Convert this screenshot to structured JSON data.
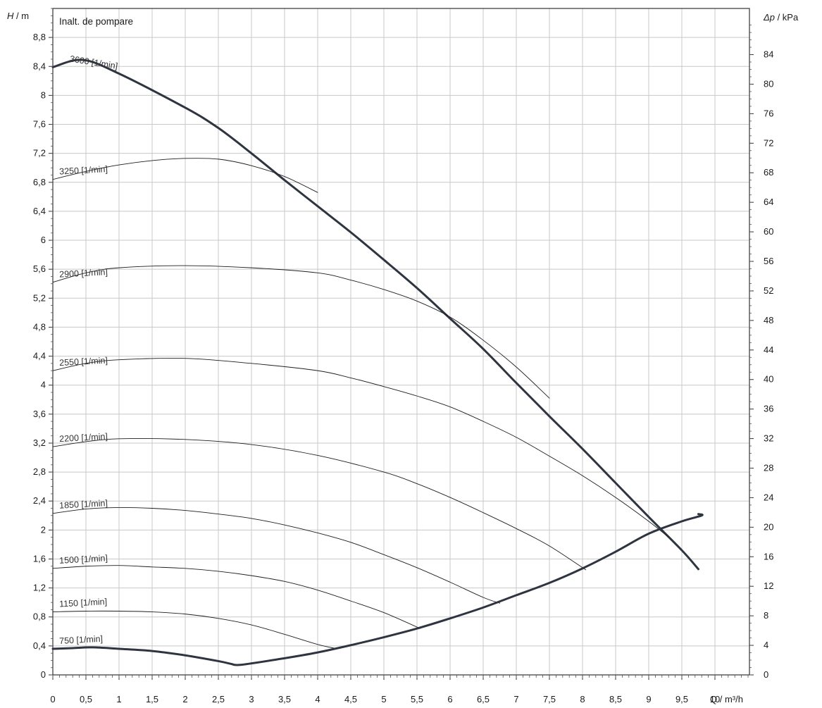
{
  "chart_data": {
    "type": "line",
    "title": "Inalt. de pompare",
    "y_axis_left": {
      "label_italic": "H",
      "label_rest": " / m",
      "range": [
        0,
        9.2
      ],
      "ticks": [
        0,
        0.4,
        0.8,
        1.2,
        1.6,
        2,
        2.4,
        2.8,
        3.2,
        3.6,
        4,
        4.4,
        4.8,
        5.2,
        5.6,
        6,
        6.4,
        6.8,
        7.2,
        7.6,
        8,
        8.4,
        8.8
      ],
      "tick_labels": [
        "0",
        "0,4",
        "0,8",
        "1,2",
        "1,6",
        "2",
        "2,4",
        "2,8",
        "3,2",
        "3,6",
        "4",
        "4,4",
        "4,8",
        "5,2",
        "5,6",
        "6",
        "6,4",
        "6,8",
        "7,2",
        "7,6",
        "8",
        "8,4",
        "8,8"
      ]
    },
    "y_axis_right": {
      "label_symbol": "Δp",
      "label_rest": " / kPa",
      "ticks": [
        0,
        4,
        8,
        12,
        16,
        20,
        24,
        28,
        32,
        36,
        40,
        44,
        48,
        52,
        56,
        60,
        64,
        68,
        72,
        76,
        80,
        84
      ],
      "tick_labels": [
        "0",
        "4",
        "8",
        "12",
        "16",
        "20",
        "24",
        "28",
        "32",
        "36",
        "40",
        "44",
        "48",
        "52",
        "56",
        "60",
        "64",
        "68",
        "72",
        "76",
        "80",
        "84"
      ],
      "kpa_per_m": 9.81
    },
    "x_axis": {
      "label": "Q / m³/h",
      "range": [
        0,
        10.5
      ],
      "ticks": [
        0,
        0.5,
        1,
        1.5,
        2,
        2.5,
        3,
        3.5,
        4,
        4.5,
        5,
        5.5,
        6,
        6.5,
        7,
        7.5,
        8,
        8.5,
        9,
        9.5,
        10
      ],
      "tick_labels": [
        "0",
        "0,5",
        "1",
        "1,5",
        "2",
        "2,5",
        "3",
        "3,5",
        "4",
        "4,5",
        "5",
        "5,5",
        "6",
        "6,5",
        "7",
        "7,5",
        "8",
        "8,5",
        "9",
        "9,5",
        "10"
      ]
    },
    "grid": true,
    "series": [
      {
        "name": "3600 [1/min]",
        "bold": true,
        "x": [
          0,
          0.45,
          1,
          2,
          2.5,
          3,
          3.5,
          4,
          4.5,
          5,
          5.5,
          6,
          6.5,
          7,
          7.5,
          8,
          8.5,
          9,
          9.5,
          9.75
        ],
        "y": [
          8.39,
          8.49,
          8.3,
          7.83,
          7.55,
          7.2,
          6.83,
          6.47,
          6.11,
          5.73,
          5.34,
          4.92,
          4.5,
          4.03,
          3.57,
          3.12,
          2.65,
          2.18,
          1.72,
          1.46
        ]
      },
      {
        "name": "3250 [1/min]",
        "bold": false,
        "x": [
          0,
          0.5,
          1,
          1.5,
          2,
          2.5,
          3,
          3.5,
          4
        ],
        "y": [
          6.84,
          6.95,
          7.04,
          7.1,
          7.13,
          7.12,
          7.03,
          6.88,
          6.66
        ]
      },
      {
        "name": "2900 [1/min]",
        "bold": false,
        "x": [
          0,
          0.5,
          1,
          2,
          3,
          4,
          4.5,
          5,
          5.5,
          6,
          6.5,
          7,
          7.5
        ],
        "y": [
          5.42,
          5.55,
          5.62,
          5.65,
          5.62,
          5.55,
          5.45,
          5.32,
          5.16,
          4.94,
          4.62,
          4.25,
          3.82
        ]
      },
      {
        "name": "2550 [1/min]",
        "bold": false,
        "x": [
          0,
          0.5,
          1,
          2,
          3,
          4,
          4.5,
          5,
          5.5,
          6,
          6.5,
          7,
          7.5,
          8,
          8.5,
          9,
          9.3
        ],
        "y": [
          4.2,
          4.3,
          4.35,
          4.37,
          4.3,
          4.2,
          4.1,
          3.98,
          3.85,
          3.7,
          3.5,
          3.28,
          3.02,
          2.75,
          2.45,
          2.12,
          1.9
        ]
      },
      {
        "name": "2200 [1/min]",
        "bold": false,
        "x": [
          0,
          0.5,
          1,
          2,
          3,
          4,
          5,
          5.5,
          6,
          6.5,
          7,
          7.5,
          8.05
        ],
        "y": [
          3.15,
          3.22,
          3.26,
          3.25,
          3.18,
          3.03,
          2.8,
          2.64,
          2.45,
          2.24,
          2.02,
          1.78,
          1.45
        ]
      },
      {
        "name": "1850 [1/min]",
        "bold": false,
        "x": [
          0,
          0.5,
          1,
          1.5,
          2,
          2.5,
          3,
          3.5,
          4,
          4.5,
          5,
          5.5,
          6,
          6.5,
          6.75
        ],
        "y": [
          2.23,
          2.29,
          2.31,
          2.3,
          2.27,
          2.22,
          2.16,
          2.07,
          1.96,
          1.83,
          1.66,
          1.48,
          1.28,
          1.07,
          0.99
        ]
      },
      {
        "name": "1500 [1/min]",
        "bold": false,
        "x": [
          0,
          0.5,
          1,
          1.5,
          2,
          2.5,
          3,
          3.5,
          4,
          4.5,
          5,
          5.55
        ],
        "y": [
          1.47,
          1.5,
          1.51,
          1.49,
          1.47,
          1.43,
          1.37,
          1.29,
          1.17,
          1.02,
          0.86,
          0.64
        ]
      },
      {
        "name": "1150 [1/min]",
        "bold": false,
        "x": [
          0,
          0.5,
          1,
          1.5,
          2,
          2.5,
          3,
          3.5,
          4,
          4.3
        ],
        "y": [
          0.87,
          0.88,
          0.88,
          0.87,
          0.84,
          0.78,
          0.69,
          0.56,
          0.42,
          0.36
        ]
      },
      {
        "name": "750 [1/min]",
        "bold": true,
        "x": [
          0,
          0.3,
          0.6,
          1,
          1.5,
          2,
          2.5,
          2.7
        ],
        "y": [
          0.36,
          0.37,
          0.38,
          0.36,
          0.33,
          0.27,
          0.19,
          0.15
        ]
      },
      {
        "name": "",
        "bold": true,
        "x": [
          2.7,
          2.85,
          3.5,
          4,
          4.5,
          5,
          5.5,
          6,
          6.5,
          7,
          7.5,
          8,
          8.5,
          9,
          9.5,
          9.8,
          9.75
        ],
        "y": [
          0.15,
          0.14,
          0.23,
          0.31,
          0.41,
          0.52,
          0.64,
          0.78,
          0.93,
          1.1,
          1.27,
          1.47,
          1.7,
          1.95,
          2.12,
          2.2,
          2.22
        ]
      }
    ],
    "curve_labels": [
      "3600 [1/min]",
      "3250 [1/min]",
      "2900 [1/min]",
      "2550 [1/min]",
      "2200 [1/min]",
      "1850 [1/min]",
      "1500 [1/min]",
      "1150 [1/min]",
      "750 [1/min]"
    ]
  }
}
